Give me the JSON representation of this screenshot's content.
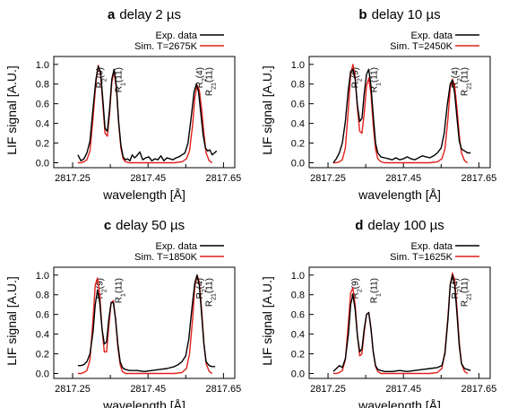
{
  "figure": {
    "x_axis_label": "wavelength [Å]",
    "y_axis_label": "LIF signal [A.U.]",
    "legend_exp": "Exp. data",
    "legend_sim_prefix": "Sim. T=",
    "colors": {
      "experiment": "#000000",
      "simulation": "#e0201b"
    }
  },
  "chart_data": [
    {
      "type": "line",
      "letter": "a",
      "title": "delay 2 µs",
      "sim_temperature": "2675K",
      "xlabel": "wavelength [Å]",
      "ylabel": "LIF signal [A.U.]",
      "xlim": [
        2817.2,
        2817.68
      ],
      "ylim": [
        -0.05,
        1.08
      ],
      "xticks": [
        "2817.25",
        "2817.45",
        "2817.65"
      ],
      "yticks": [
        "0.0",
        "0.2",
        "0.4",
        "0.6",
        "0.8",
        "1.0"
      ],
      "legend": "top-right",
      "line_labels": [
        {
          "x": 2817.32,
          "text": "R2(9)"
        },
        {
          "x": 2817.37,
          "text": "R1(11)"
        },
        {
          "x": 2817.585,
          "text": "R2(4)"
        },
        {
          "x": 2817.61,
          "text": "R21(11)"
        }
      ],
      "series": [
        {
          "name": "Exp. data",
          "color": "#000000",
          "x": [
            2817.264,
            2817.272,
            2817.28,
            2817.288,
            2817.296,
            2817.304,
            2817.312,
            2817.318,
            2817.324,
            2817.33,
            2817.336,
            2817.342,
            2817.348,
            2817.354,
            2817.36,
            2817.366,
            2817.372,
            2817.378,
            2817.384,
            2817.39,
            2817.396,
            2817.402,
            2817.408,
            2817.414,
            2817.42,
            2817.428,
            2817.436,
            2817.444,
            2817.452,
            2817.46,
            2817.468,
            2817.476,
            2817.484,
            2817.492,
            2817.5,
            2817.508,
            2817.516,
            2817.524,
            2817.532,
            2817.54,
            2817.548,
            2817.556,
            2817.564,
            2817.572,
            2817.578,
            2817.584,
            2817.59,
            2817.596,
            2817.602,
            2817.608,
            2817.614,
            2817.62,
            2817.626,
            2817.632
          ],
          "y": [
            0.08,
            0.02,
            0.04,
            0.1,
            0.22,
            0.55,
            0.85,
            0.98,
            0.92,
            0.65,
            0.35,
            0.32,
            0.55,
            0.85,
            0.95,
            0.78,
            0.42,
            0.18,
            0.06,
            0.03,
            0.04,
            0.02,
            0.08,
            0.05,
            0.07,
            0.11,
            0.03,
            0.05,
            0.06,
            0.02,
            0.04,
            0.03,
            0.07,
            0.02,
            0.05,
            0.04,
            0.03,
            0.05,
            0.06,
            0.08,
            0.1,
            0.2,
            0.45,
            0.72,
            0.8,
            0.72,
            0.5,
            0.28,
            0.15,
            0.12,
            0.13,
            0.08,
            0.1,
            0.12
          ]
        },
        {
          "name": "Sim. T=2675K",
          "color": "#e0201b",
          "x": [
            2817.264,
            2817.272,
            2817.28,
            2817.288,
            2817.296,
            2817.304,
            2817.312,
            2817.318,
            2817.324,
            2817.33,
            2817.336,
            2817.342,
            2817.348,
            2817.354,
            2817.36,
            2817.366,
            2817.372,
            2817.378,
            2817.384,
            2817.39,
            2817.4,
            2817.42,
            2817.44,
            2817.46,
            2817.48,
            2817.5,
            2817.52,
            2817.54,
            2817.552,
            2817.56,
            2817.568,
            2817.574,
            2817.58,
            2817.586,
            2817.592,
            2817.598,
            2817.604,
            2817.612,
            2817.62
          ],
          "y": [
            0.0,
            0.0,
            0.01,
            0.03,
            0.12,
            0.45,
            0.82,
            0.99,
            0.9,
            0.6,
            0.3,
            0.27,
            0.5,
            0.82,
            0.93,
            0.75,
            0.4,
            0.15,
            0.04,
            0.01,
            0.0,
            0.0,
            0.0,
            0.0,
            0.0,
            0.0,
            0.0,
            0.01,
            0.04,
            0.12,
            0.38,
            0.66,
            0.79,
            0.74,
            0.55,
            0.3,
            0.1,
            0.02,
            0.0
          ]
        }
      ]
    },
    {
      "type": "line",
      "letter": "b",
      "title": "delay 10 µs",
      "sim_temperature": "2450K",
      "xlabel": "wavelength [Å]",
      "ylabel": "LIF signal [A.U.]",
      "xlim": [
        2817.2,
        2817.68
      ],
      "ylim": [
        -0.05,
        1.08
      ],
      "xticks": [
        "2817.25",
        "2817.45",
        "2817.65"
      ],
      "yticks": [
        "0.0",
        "0.2",
        "0.4",
        "0.6",
        "0.8",
        "1.0"
      ],
      "legend": "top-right",
      "line_labels": [
        {
          "x": 2817.32,
          "text": "R2(9)"
        },
        {
          "x": 2817.37,
          "text": "R1(11)"
        },
        {
          "x": 2817.585,
          "text": "R2(4)"
        },
        {
          "x": 2817.61,
          "text": "R21(11)"
        }
      ],
      "series": [
        {
          "name": "Exp. data",
          "color": "#000000",
          "x": [
            2817.264,
            2817.272,
            2817.28,
            2817.288,
            2817.296,
            2817.304,
            2817.31,
            2817.316,
            2817.322,
            2817.328,
            2817.334,
            2817.34,
            2817.346,
            2817.352,
            2817.358,
            2817.364,
            2817.37,
            2817.376,
            2817.382,
            2817.39,
            2817.4,
            2817.41,
            2817.42,
            2817.43,
            2817.44,
            2817.45,
            2817.46,
            2817.47,
            2817.48,
            2817.49,
            2817.5,
            2817.51,
            2817.52,
            2817.53,
            2817.54,
            2817.55,
            2817.558,
            2817.566,
            2817.574,
            2817.58,
            2817.586,
            2817.592,
            2817.598,
            2817.604,
            2817.612,
            2817.62,
            2817.628
          ],
          "y": [
            0.0,
            0.04,
            0.1,
            0.2,
            0.42,
            0.75,
            0.93,
            0.95,
            0.85,
            0.58,
            0.42,
            0.45,
            0.7,
            0.9,
            0.95,
            0.78,
            0.48,
            0.2,
            0.1,
            0.06,
            0.05,
            0.04,
            0.03,
            0.05,
            0.03,
            0.04,
            0.06,
            0.04,
            0.03,
            0.05,
            0.07,
            0.06,
            0.05,
            0.07,
            0.1,
            0.15,
            0.3,
            0.58,
            0.8,
            0.84,
            0.7,
            0.45,
            0.22,
            0.14,
            0.12,
            0.1,
            0.1
          ]
        },
        {
          "name": "Sim. T=2450K",
          "color": "#e0201b",
          "x": [
            2817.264,
            2817.272,
            2817.28,
            2817.288,
            2817.296,
            2817.304,
            2817.31,
            2817.316,
            2817.322,
            2817.328,
            2817.334,
            2817.34,
            2817.346,
            2817.352,
            2817.358,
            2817.364,
            2817.37,
            2817.376,
            2817.382,
            2817.39,
            2817.4,
            2817.42,
            2817.44,
            2817.46,
            2817.48,
            2817.5,
            2817.52,
            2817.54,
            2817.552,
            2817.56,
            2817.568,
            2817.574,
            2817.58,
            2817.586,
            2817.592,
            2817.598,
            2817.604,
            2817.612,
            2817.62
          ],
          "y": [
            0.0,
            0.0,
            0.01,
            0.03,
            0.15,
            0.55,
            0.9,
            1.0,
            0.88,
            0.55,
            0.32,
            0.3,
            0.5,
            0.78,
            0.86,
            0.7,
            0.38,
            0.14,
            0.04,
            0.01,
            0.0,
            0.0,
            0.0,
            0.0,
            0.0,
            0.0,
            0.0,
            0.01,
            0.04,
            0.14,
            0.45,
            0.76,
            0.85,
            0.78,
            0.55,
            0.28,
            0.1,
            0.02,
            0.0
          ]
        }
      ]
    },
    {
      "type": "line",
      "letter": "c",
      "title": "delay 50 µs",
      "sim_temperature": "1850K",
      "xlabel": "wavelength [Å]",
      "ylabel": "LIF signal [A.U.]",
      "xlim": [
        2817.2,
        2817.68
      ],
      "ylim": [
        -0.05,
        1.08
      ],
      "xticks": [
        "2817.25",
        "2817.45",
        "2817.65"
      ],
      "yticks": [
        "0.0",
        "0.2",
        "0.4",
        "0.6",
        "0.8",
        "1.0"
      ],
      "legend": "top-right",
      "line_labels": [
        {
          "x": 2817.32,
          "text": "R2(9)"
        },
        {
          "x": 2817.37,
          "text": "R1(11)"
        },
        {
          "x": 2817.585,
          "text": "R2(4)"
        },
        {
          "x": 2817.61,
          "text": "R21(11)"
        }
      ],
      "series": [
        {
          "name": "Exp. data",
          "color": "#000000",
          "x": [
            2817.264,
            2817.272,
            2817.28,
            2817.288,
            2817.296,
            2817.304,
            2817.31,
            2817.316,
            2817.322,
            2817.328,
            2817.334,
            2817.34,
            2817.346,
            2817.352,
            2817.358,
            2817.364,
            2817.37,
            2817.376,
            2817.382,
            2817.39,
            2817.4,
            2817.42,
            2817.44,
            2817.46,
            2817.48,
            2817.5,
            2817.52,
            2817.53,
            2817.54,
            2817.55,
            2817.558,
            2817.566,
            2817.574,
            2817.58,
            2817.586,
            2817.592,
            2817.598,
            2817.604,
            2817.612,
            2817.62,
            2817.628
          ],
          "y": [
            0.08,
            0.08,
            0.09,
            0.12,
            0.2,
            0.42,
            0.7,
            0.85,
            0.72,
            0.45,
            0.3,
            0.32,
            0.55,
            0.72,
            0.72,
            0.55,
            0.3,
            0.12,
            0.06,
            0.04,
            0.03,
            0.03,
            0.02,
            0.03,
            0.04,
            0.05,
            0.07,
            0.09,
            0.12,
            0.18,
            0.35,
            0.65,
            0.92,
            1.0,
            0.9,
            0.6,
            0.3,
            0.12,
            0.08,
            0.07,
            0.07
          ]
        },
        {
          "name": "Sim. T=1850K",
          "color": "#e0201b",
          "x": [
            2817.264,
            2817.272,
            2817.28,
            2817.288,
            2817.296,
            2817.304,
            2817.31,
            2817.316,
            2817.322,
            2817.328,
            2817.334,
            2817.34,
            2817.346,
            2817.352,
            2817.358,
            2817.364,
            2817.37,
            2817.376,
            2817.382,
            2817.39,
            2817.4,
            2817.42,
            2817.44,
            2817.46,
            2817.48,
            2817.5,
            2817.52,
            2817.54,
            2817.552,
            2817.56,
            2817.568,
            2817.574,
            2817.58,
            2817.586,
            2817.592,
            2817.598,
            2817.604,
            2817.612,
            2817.62
          ],
          "y": [
            0.0,
            0.0,
            0.01,
            0.03,
            0.14,
            0.55,
            0.9,
            0.97,
            0.8,
            0.45,
            0.22,
            0.22,
            0.48,
            0.72,
            0.74,
            0.55,
            0.27,
            0.09,
            0.02,
            0.0,
            0.0,
            0.0,
            0.0,
            0.0,
            0.0,
            0.0,
            0.0,
            0.01,
            0.05,
            0.2,
            0.55,
            0.88,
            1.0,
            0.93,
            0.65,
            0.32,
            0.1,
            0.02,
            0.0
          ]
        }
      ]
    },
    {
      "type": "line",
      "letter": "d",
      "title": "delay 100 µs",
      "sim_temperature": "1625K",
      "xlabel": "wavelength [Å]",
      "ylabel": "LIF signal [A.U.]",
      "xlim": [
        2817.2,
        2817.68
      ],
      "ylim": [
        -0.05,
        1.08
      ],
      "xticks": [
        "2817.25",
        "2817.45",
        "2817.65"
      ],
      "yticks": [
        "0.0",
        "0.2",
        "0.4",
        "0.6",
        "0.8",
        "1.0"
      ],
      "legend": "top-right",
      "line_labels": [
        {
          "x": 2817.32,
          "text": "R2(9)"
        },
        {
          "x": 2817.37,
          "text": "R1(11)"
        },
        {
          "x": 2817.585,
          "text": "R2(4)"
        },
        {
          "x": 2817.61,
          "text": "R21(11)"
        }
      ],
      "series": [
        {
          "name": "Exp. data",
          "color": "#000000",
          "x": [
            2817.264,
            2817.272,
            2817.28,
            2817.288,
            2817.296,
            2817.304,
            2817.31,
            2817.316,
            2817.322,
            2817.328,
            2817.334,
            2817.34,
            2817.346,
            2817.352,
            2817.358,
            2817.364,
            2817.37,
            2817.376,
            2817.382,
            2817.39,
            2817.4,
            2817.42,
            2817.44,
            2817.46,
            2817.48,
            2817.5,
            2817.52,
            2817.54,
            2817.552,
            2817.56,
            2817.568,
            2817.574,
            2817.58,
            2817.586,
            2817.592,
            2817.598,
            2817.604,
            2817.612,
            2817.62,
            2817.628
          ],
          "y": [
            0.02,
            0.05,
            0.08,
            0.06,
            0.15,
            0.4,
            0.7,
            0.8,
            0.65,
            0.38,
            0.22,
            0.25,
            0.45,
            0.6,
            0.62,
            0.45,
            0.22,
            0.08,
            0.04,
            0.03,
            0.02,
            0.02,
            0.03,
            0.02,
            0.03,
            0.04,
            0.05,
            0.06,
            0.08,
            0.2,
            0.55,
            0.9,
            1.0,
            0.9,
            0.6,
            0.28,
            0.1,
            0.05,
            0.04,
            0.03
          ]
        },
        {
          "name": "Sim. T=1625K",
          "color": "#e0201b",
          "x": [
            2817.264,
            2817.272,
            2817.28,
            2817.288,
            2817.296,
            2817.304,
            2817.31,
            2817.316,
            2817.322,
            2817.328,
            2817.334,
            2817.34,
            2817.346,
            2817.352,
            2817.358,
            2817.364,
            2817.37,
            2817.376,
            2817.382,
            2817.39,
            2817.4,
            2817.42,
            2817.44,
            2817.46,
            2817.48,
            2817.5,
            2817.52,
            2817.54,
            2817.552,
            2817.56,
            2817.568,
            2817.574,
            2817.58,
            2817.586,
            2817.592,
            2817.598,
            2817.604,
            2817.612,
            2817.62
          ],
          "y": [
            0.0,
            0.0,
            0.01,
            0.03,
            0.14,
            0.52,
            0.82,
            0.87,
            0.7,
            0.38,
            0.18,
            0.2,
            0.42,
            0.6,
            0.62,
            0.46,
            0.22,
            0.07,
            0.02,
            0.0,
            0.0,
            0.0,
            0.0,
            0.0,
            0.0,
            0.0,
            0.0,
            0.01,
            0.05,
            0.22,
            0.58,
            0.9,
            1.02,
            0.95,
            0.66,
            0.32,
            0.1,
            0.02,
            0.0
          ]
        }
      ]
    }
  ]
}
